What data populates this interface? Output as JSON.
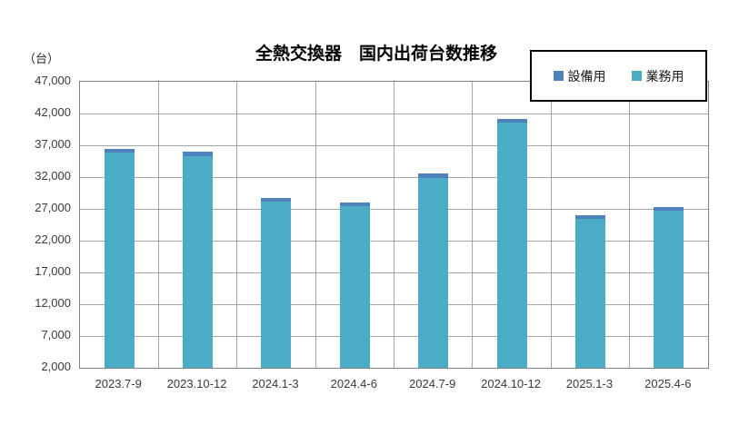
{
  "chart_data": {
    "type": "bar",
    "stacked": true,
    "title": "全熱交換器　国内出荷台数推移",
    "unit_label": "（台）",
    "categories": [
      "2023.7-9",
      "2023.10-12",
      "2024.1-3",
      "2024.4-6",
      "2024.7-9",
      "2024.10-12",
      "2025.1-3",
      "2025.4-6"
    ],
    "series": [
      {
        "name": "業務用",
        "color": "#4BACC6",
        "values": [
          35800,
          35350,
          28100,
          27500,
          31900,
          40600,
          25400,
          26700
        ]
      },
      {
        "name": "設備用",
        "color": "#4F81BD",
        "values": [
          650,
          700,
          600,
          550,
          700,
          550,
          550,
          600
        ]
      }
    ],
    "totals": [
      36450,
      36050,
      28700,
      28050,
      32600,
      41150,
      25950,
      27300
    ],
    "ylim": [
      2000,
      47000
    ],
    "ytick_step": 5000,
    "ytick_labels": [
      "2,000",
      "7,000",
      "12,000",
      "17,000",
      "22,000",
      "27,000",
      "32,000",
      "37,000",
      "42,000",
      "47,000"
    ],
    "grid": true,
    "legend_position": "top-right",
    "legend_order": [
      "設備用",
      "業務用"
    ],
    "colors": {
      "equipment": "#4F81BD",
      "business": "#4BACC6",
      "gridline": "#a6a6a6",
      "axis_border": "#808080"
    }
  }
}
